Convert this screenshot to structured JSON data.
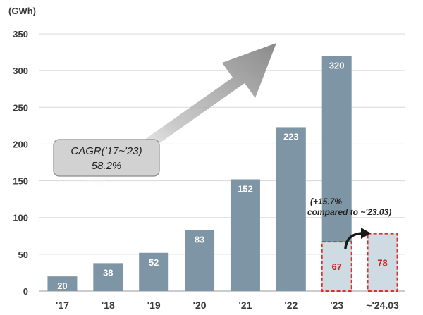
{
  "chart_data": {
    "type": "bar",
    "unit_label": "(GWh)",
    "categories": [
      "'17",
      "'18",
      "'19",
      "'20",
      "'21",
      "'22",
      "'23",
      "~'24.03"
    ],
    "values": [
      20,
      38,
      52,
      83,
      152,
      223,
      320,
      78
    ],
    "highlight": {
      "categories": [
        "'23",
        "~'24.03"
      ],
      "values": [
        67,
        78
      ],
      "style": "dashed-outline"
    },
    "yticks": [
      0,
      50,
      100,
      150,
      200,
      250,
      300,
      350
    ],
    "ylim": [
      0,
      350
    ],
    "grid": true,
    "annotations": {
      "cagr_line1": "CAGR('17~'23)",
      "cagr_line2": "58.2%",
      "growth_line1": "(+15.7%",
      "growth_line2": "compared to ~'23.03)"
    },
    "colors": {
      "bar": "#7e95a5",
      "highlight_fill": "#cfdbe2",
      "highlight_border": "#d9322e",
      "highlight_text": "#c8201e",
      "label_text": "#ffffff",
      "grid": "#d8d8d8",
      "arrow": "#9a9a9a"
    }
  }
}
